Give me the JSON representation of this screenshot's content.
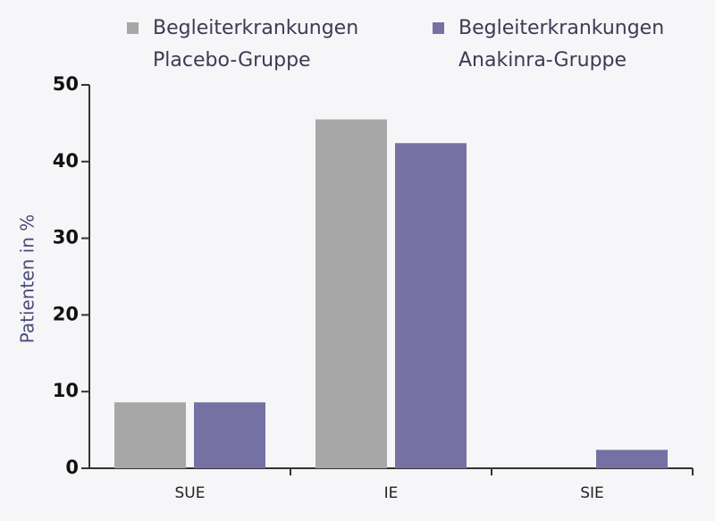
{
  "chart_data": {
    "type": "bar",
    "y_label": "Patienten in %",
    "categories": [
      "SUE",
      "IE",
      "SIE"
    ],
    "series": [
      {
        "name": "Begleiterkrankungen Placebo-Gruppe",
        "color": "#a7a7a7",
        "values": [
          8.6,
          45.5,
          0
        ]
      },
      {
        "name": "Begleiterkrankungen Anakinra-Gruppe",
        "color": "#7671a3",
        "values": [
          8.6,
          42.4,
          2.4
        ]
      }
    ],
    "ylim": [
      0,
      50
    ],
    "yticks": [
      0,
      10,
      20,
      30,
      40,
      50
    ],
    "legend": "top"
  }
}
